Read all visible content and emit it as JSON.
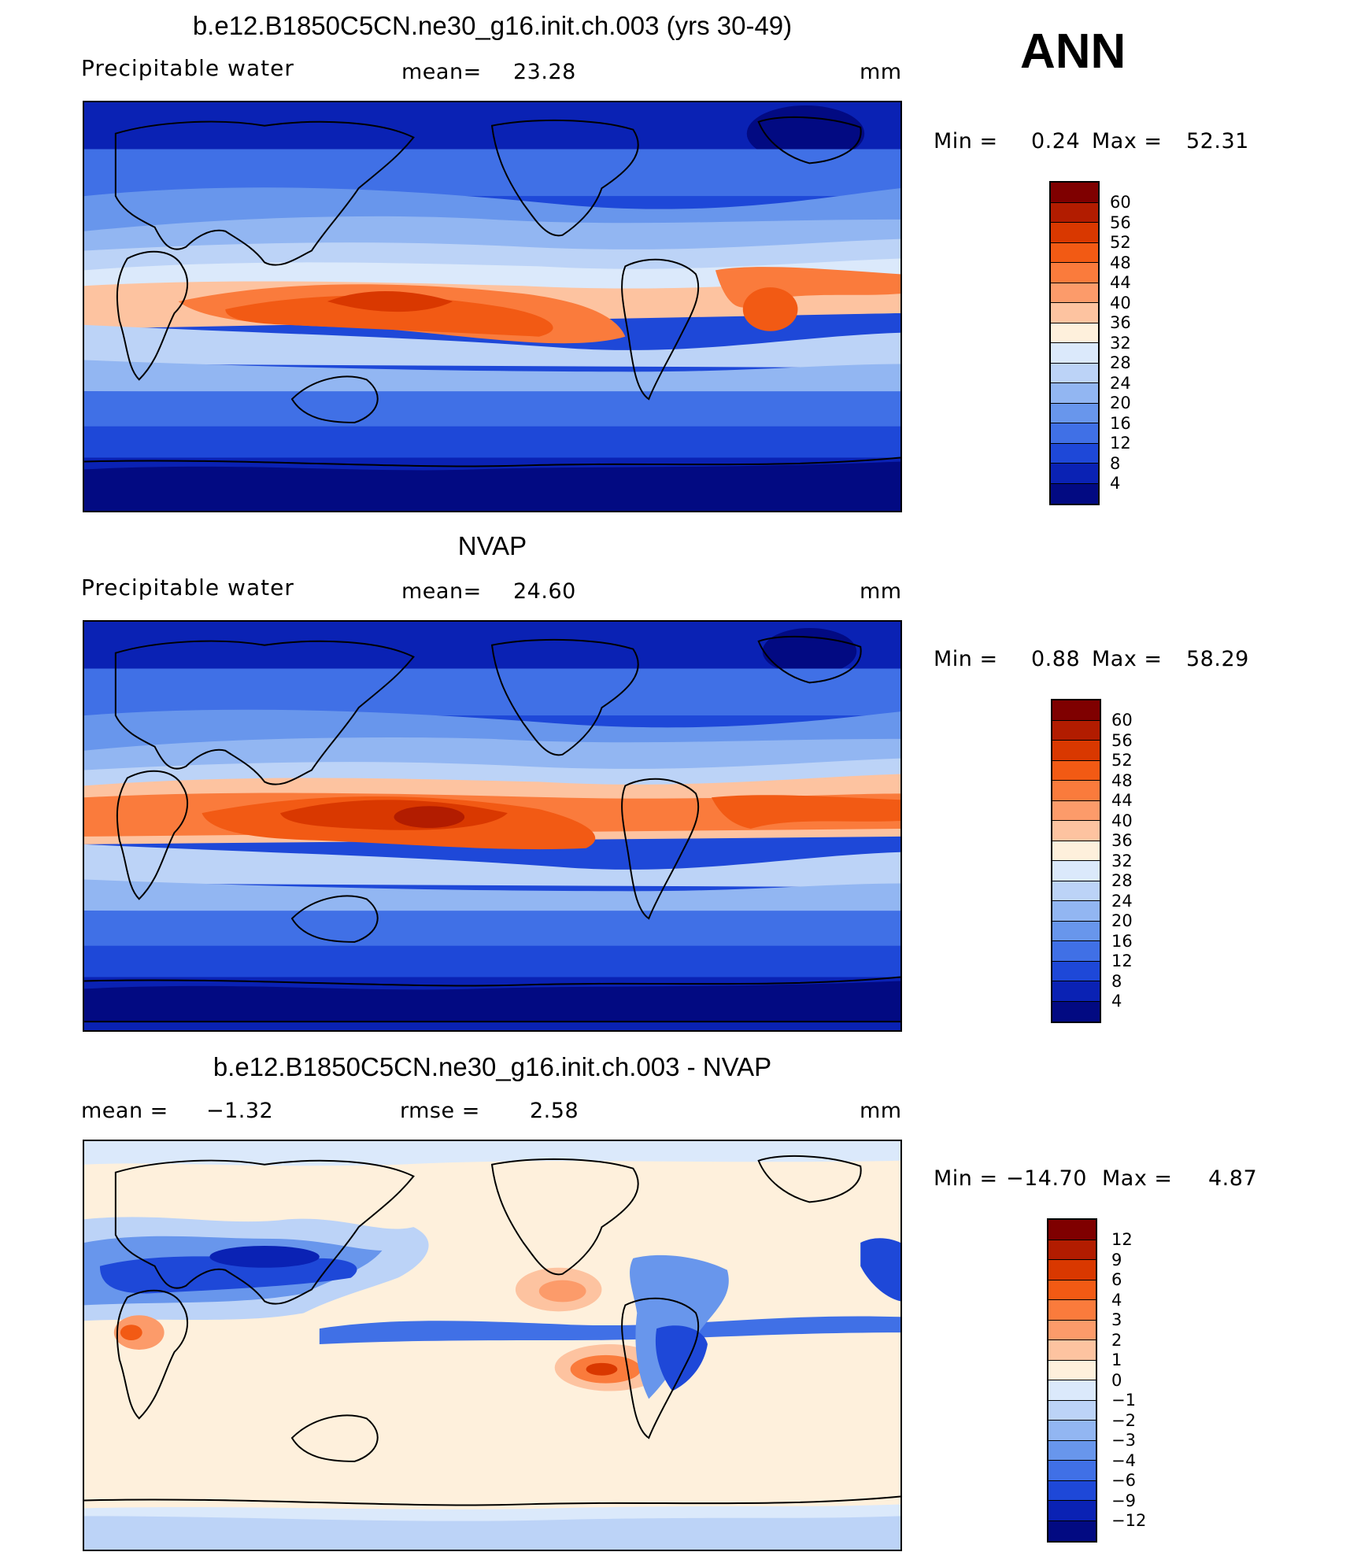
{
  "season": "ANN",
  "panels": [
    {
      "id": "model",
      "title": "b.e12.B1850C5CN.ne30_g16.init.ch.003 (yrs 30-49)",
      "variable": "Precipitable  water",
      "mean_label": "mean=",
      "mean_value": "23.28",
      "units": "mm",
      "min_label": "Min  =",
      "min_value": "0.24",
      "max_label": "Max  =",
      "max_value": "52.31",
      "colorbar": {
        "labels": [
          "60",
          "56",
          "52",
          "48",
          "44",
          "40",
          "36",
          "32",
          "28",
          "24",
          "20",
          "16",
          "12",
          "8",
          "4"
        ],
        "colors": [
          "#7f0000",
          "#b21c00",
          "#d93800",
          "#f25a14",
          "#fa7b3c",
          "#fc9b6a",
          "#fdc3a0",
          "#fef0dc",
          "#dbe9fb",
          "#bcd3f7",
          "#92b6f2",
          "#6896ec",
          "#4070e6",
          "#1e48d8",
          "#0a22b4",
          "#020a82"
        ]
      }
    },
    {
      "id": "obs",
      "title": "NVAP",
      "variable": "Precipitable  water",
      "mean_label": "mean=",
      "mean_value": "24.60",
      "units": "mm",
      "min_label": "Min  =",
      "min_value": "0.88",
      "max_label": "Max  =",
      "max_value": "58.29",
      "colorbar": {
        "labels": [
          "60",
          "56",
          "52",
          "48",
          "44",
          "40",
          "36",
          "32",
          "28",
          "24",
          "20",
          "16",
          "12",
          "8",
          "4"
        ],
        "colors": [
          "#7f0000",
          "#b21c00",
          "#d93800",
          "#f25a14",
          "#fa7b3c",
          "#fc9b6a",
          "#fdc3a0",
          "#fef0dc",
          "#dbe9fb",
          "#bcd3f7",
          "#92b6f2",
          "#6896ec",
          "#4070e6",
          "#1e48d8",
          "#0a22b4",
          "#020a82"
        ]
      }
    },
    {
      "id": "diff",
      "title": "b.e12.B1850C5CN.ne30_g16.init.ch.003 - NVAP",
      "mean_label": "mean  =",
      "mean_value": "−1.32",
      "rmse_label": "rmse  =",
      "rmse_value": "2.58",
      "units": "mm",
      "min_label": "Min  =",
      "min_value": "−14.70",
      "max_label": "Max  =",
      "max_value": "4.87",
      "colorbar": {
        "labels": [
          "12",
          "9",
          "6",
          "4",
          "3",
          "2",
          "1",
          "0",
          "−1",
          "−2",
          "−3",
          "−4",
          "−6",
          "−9",
          "−12"
        ],
        "colors": [
          "#7f0000",
          "#b21c00",
          "#d93800",
          "#f25a14",
          "#fa7b3c",
          "#fc9b6a",
          "#fdc3a0",
          "#fef0dc",
          "#dbe9fb",
          "#bcd3f7",
          "#92b6f2",
          "#6896ec",
          "#4070e6",
          "#1e48d8",
          "#0a22b4",
          "#020a82"
        ]
      }
    }
  ]
}
